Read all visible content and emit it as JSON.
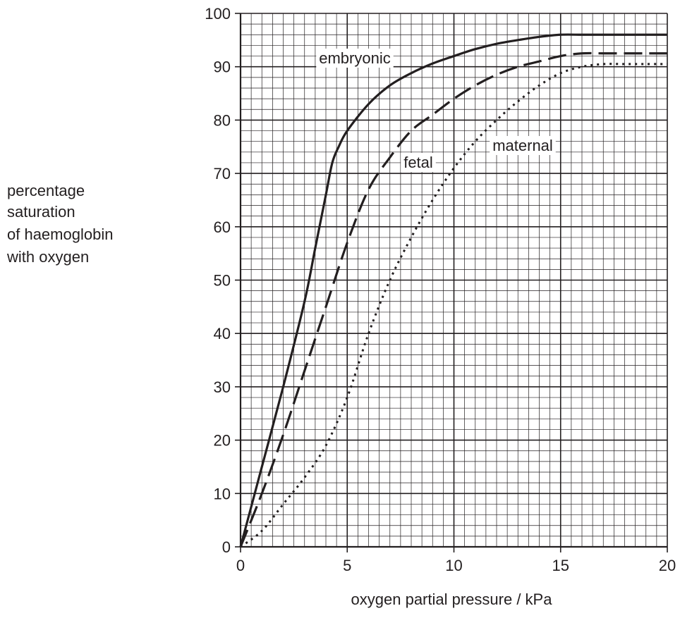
{
  "chart_data": {
    "type": "line",
    "xlabel": "oxygen partial pressure / kPa",
    "ylabel_lines": [
      "percentage",
      "saturation",
      "of haemoglobin",
      "with oxygen"
    ],
    "xlim": [
      0,
      20
    ],
    "ylim": [
      0,
      100
    ],
    "x_ticks": [
      "0",
      "5",
      "10",
      "15",
      "20"
    ],
    "y_ticks": [
      "0",
      "10",
      "20",
      "30",
      "40",
      "50",
      "60",
      "70",
      "80",
      "90",
      "100"
    ],
    "grid": true,
    "series": [
      {
        "name": "embryonic",
        "style": "solid",
        "x": [
          0,
          1,
          2,
          3,
          3.5,
          4,
          4.3,
          4.6,
          5,
          6,
          7,
          8,
          9,
          10,
          11,
          12,
          13,
          14,
          15,
          16,
          17,
          18,
          19,
          20
        ],
        "y": [
          0,
          15,
          30,
          46,
          56,
          66,
          72,
          75,
          78,
          83,
          86.5,
          88.8,
          90.6,
          92,
          93.3,
          94.3,
          95,
          95.6,
          96,
          96,
          96,
          96,
          96,
          96
        ]
      },
      {
        "name": "fetal",
        "style": "dashed",
        "x": [
          0,
          1,
          2,
          3,
          4,
          5,
          6,
          7,
          8,
          9,
          10,
          11,
          12,
          13,
          14,
          15,
          16,
          17,
          18,
          19,
          20
        ],
        "y": [
          0,
          10,
          21,
          33,
          45,
          57,
          67,
          73,
          78,
          81,
          84,
          86.5,
          88.5,
          90,
          91,
          92,
          92.5,
          92.5,
          92.5,
          92.5,
          92.5
        ]
      },
      {
        "name": "maternal",
        "style": "dotted",
        "x": [
          0,
          1,
          2,
          3,
          4,
          5,
          6,
          7,
          8,
          9,
          10,
          11,
          12,
          13,
          14,
          15,
          16,
          17,
          18,
          19,
          20
        ],
        "y": [
          0,
          3,
          8,
          13,
          19,
          28,
          40,
          50,
          58,
          65,
          71,
          76,
          80,
          83.5,
          86.5,
          88.8,
          90,
          90.5,
          90.5,
          90.5,
          90.5
        ]
      }
    ],
    "annotations": [
      {
        "text": "embryonic",
        "series": "embryonic"
      },
      {
        "text": "fetal",
        "series": "fetal"
      },
      {
        "text": "maternal",
        "series": "maternal"
      }
    ]
  }
}
